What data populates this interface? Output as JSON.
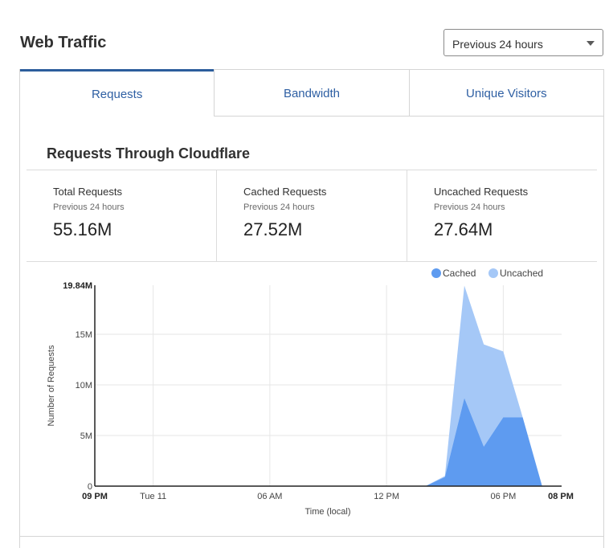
{
  "page_title": "Web Traffic",
  "range_select": {
    "value": "Previous 24 hours"
  },
  "tabs": [
    {
      "label": "Requests",
      "active": true
    },
    {
      "label": "Bandwidth",
      "active": false
    },
    {
      "label": "Unique Visitors",
      "active": false
    }
  ],
  "section_title": "Requests Through Cloudflare",
  "stats": [
    {
      "label": "Total Requests",
      "sub": "Previous 24 hours",
      "value": "55.16M"
    },
    {
      "label": "Cached Requests",
      "sub": "Previous 24 hours",
      "value": "27.52M"
    },
    {
      "label": "Uncached Requests",
      "sub": "Previous 24 hours",
      "value": "27.64M"
    }
  ],
  "colors": {
    "cached": "#5e9bf0",
    "uncached": "#a5c8f7",
    "accent": "#2c5d9c"
  },
  "chart_data": {
    "type": "area",
    "stacked": true,
    "ylabel": "Number of Requests",
    "xlabel": "Time (local)",
    "ymax_label": "19.84M",
    "ylim": [
      0,
      19.84
    ],
    "y_ticks": [
      {
        "value": 0,
        "label": "0"
      },
      {
        "value": 5,
        "label": "5M"
      },
      {
        "value": 10,
        "label": "10M"
      },
      {
        "value": 15,
        "label": "15M"
      }
    ],
    "x_range": [
      0,
      24
    ],
    "x_ticks": [
      {
        "value": 0,
        "label": "09 PM",
        "bold": true
      },
      {
        "value": 3,
        "label": "Tue 11",
        "bold": false
      },
      {
        "value": 9,
        "label": "06 AM",
        "bold": false
      },
      {
        "value": 15,
        "label": "12 PM",
        "bold": false
      },
      {
        "value": 21,
        "label": "06 PM",
        "bold": false
      },
      {
        "value": 23,
        "label": "08 PM",
        "bold": true
      }
    ],
    "grid": true,
    "legend_position": "top-right",
    "x": [
      0,
      17,
      18,
      19,
      20,
      21,
      22,
      23
    ],
    "series": [
      {
        "name": "Cached",
        "values": [
          0,
          0,
          0.9,
          8.7,
          3.9,
          6.8,
          6.8,
          0
        ]
      },
      {
        "name": "Uncached",
        "values": [
          0,
          0,
          0.1,
          11.1,
          10.1,
          6.5,
          0,
          0
        ]
      }
    ]
  }
}
